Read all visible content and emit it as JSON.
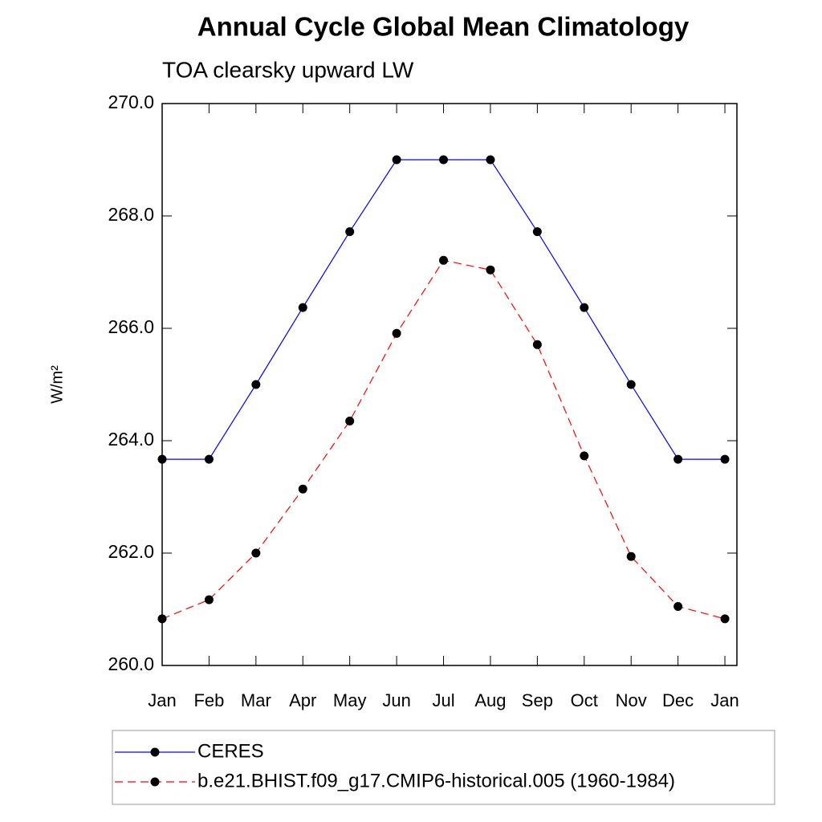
{
  "chart_data": {
    "type": "line",
    "title": "Annual Cycle Global Mean Climatology",
    "subtitle": "TOA clearsky upward LW",
    "ylabel": "W/m²",
    "categories": [
      "Jan",
      "Feb",
      "Mar",
      "Apr",
      "May",
      "Jun",
      "Jul",
      "Aug",
      "Sep",
      "Oct",
      "Nov",
      "Dec",
      "Jan"
    ],
    "series": [
      {
        "name": "CERES",
        "color": "#0000ff",
        "dash": "solid",
        "values": [
          263.67,
          263.67,
          265.0,
          266.37,
          267.72,
          269.0,
          269.0,
          269.0,
          267.72,
          266.37,
          265.0,
          263.67,
          263.67
        ]
      },
      {
        "name": "b.e21.BHIST.f09_g17.CMIP6-historical.005 (1960-1984)",
        "color": "#ff0000",
        "dash": "dashed",
        "values": [
          260.83,
          261.17,
          262.0,
          263.14,
          264.35,
          265.91,
          267.21,
          267.04,
          265.71,
          263.73,
          261.94,
          261.05,
          260.83
        ]
      }
    ],
    "ylim": [
      260,
      270
    ],
    "yticks": [
      {
        "value": 260,
        "label": "260.0"
      },
      {
        "value": 262,
        "label": "262.0"
      },
      {
        "value": 264,
        "label": "264.0"
      },
      {
        "value": 266,
        "label": "266.0"
      },
      {
        "value": 268,
        "label": "268.0"
      },
      {
        "value": 270,
        "label": "270.0"
      }
    ]
  }
}
